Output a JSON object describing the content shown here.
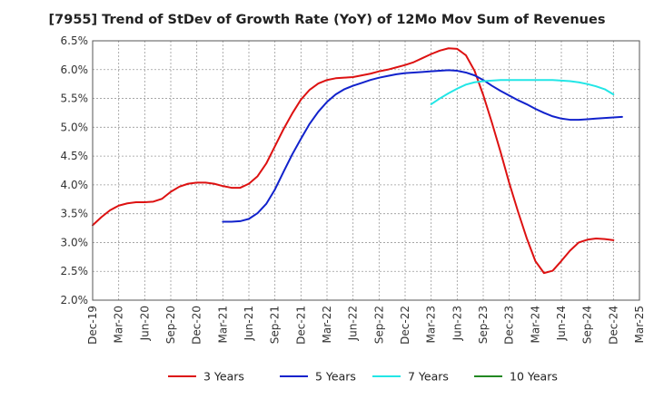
{
  "chart_data": {
    "type": "line",
    "title": "[7955]  Trend of StDev of Growth Rate (YoY) of 12Mo Mov Sum of Revenues",
    "xlabel": "",
    "ylabel": "",
    "ylim": [
      2.0,
      6.5
    ],
    "y_ticks": [
      2.0,
      2.5,
      3.0,
      3.5,
      4.0,
      4.5,
      5.0,
      5.5,
      6.0,
      6.5
    ],
    "y_tick_labels": [
      "2.0%",
      "2.5%",
      "3.0%",
      "3.5%",
      "4.0%",
      "4.5%",
      "5.0%",
      "5.5%",
      "6.0%",
      "6.5%"
    ],
    "x_tick_labels": [
      "Dec-19",
      "Mar-20",
      "Jun-20",
      "Sep-20",
      "Dec-20",
      "Mar-21",
      "Jun-21",
      "Sep-21",
      "Dec-21",
      "Mar-22",
      "Jun-22",
      "Sep-22",
      "Dec-22",
      "Mar-23",
      "Jun-23",
      "Sep-23",
      "Dec-23",
      "Mar-24",
      "Jun-24",
      "Sep-24",
      "Dec-24",
      "Mar-25"
    ],
    "grid": true,
    "legend_position": "bottom",
    "series": [
      {
        "name": "3 Years",
        "color": "#dd1111",
        "start_index": 0,
        "values": [
          3.3,
          3.44,
          3.56,
          3.64,
          3.68,
          3.7,
          3.7,
          3.71,
          3.76,
          3.88,
          3.97,
          4.02,
          4.04,
          4.04,
          4.02,
          3.98,
          3.95,
          3.95,
          4.02,
          4.15,
          4.37,
          4.67,
          4.97,
          5.24,
          5.48,
          5.65,
          5.76,
          5.82,
          5.85,
          5.86,
          5.87,
          5.9,
          5.93,
          5.97,
          6.0,
          6.04,
          6.08,
          6.13,
          6.2,
          6.27,
          6.33,
          6.37,
          6.36,
          6.25,
          5.98,
          5.56,
          5.08,
          4.57,
          4.03,
          3.54,
          3.08,
          2.68,
          2.47,
          2.51,
          2.68,
          2.86,
          3.0,
          3.05,
          3.07,
          3.06,
          3.04
        ]
      },
      {
        "name": "5 Years",
        "color": "#1122cc",
        "start_index": 15,
        "values": [
          3.36,
          3.36,
          3.37,
          3.41,
          3.51,
          3.67,
          3.92,
          4.23,
          4.53,
          4.8,
          5.06,
          5.27,
          5.44,
          5.57,
          5.66,
          5.72,
          5.77,
          5.82,
          5.86,
          5.89,
          5.92,
          5.94,
          5.95,
          5.96,
          5.97,
          5.98,
          5.99,
          5.98,
          5.95,
          5.9,
          5.82,
          5.72,
          5.63,
          5.55,
          5.47,
          5.4,
          5.32,
          5.25,
          5.19,
          5.15,
          5.13,
          5.13,
          5.14,
          5.15,
          5.16,
          5.17,
          5.18
        ]
      },
      {
        "name": "7 Years",
        "color": "#22e6e6",
        "start_index": 39,
        "values": [
          5.4,
          5.5,
          5.59,
          5.67,
          5.74,
          5.78,
          5.8,
          5.81,
          5.82,
          5.82,
          5.82,
          5.82,
          5.82,
          5.82,
          5.82,
          5.81,
          5.8,
          5.78,
          5.75,
          5.71,
          5.66,
          5.57
        ]
      },
      {
        "name": "10 Years",
        "color": "#228822",
        "start_index": 0,
        "values": []
      }
    ]
  }
}
